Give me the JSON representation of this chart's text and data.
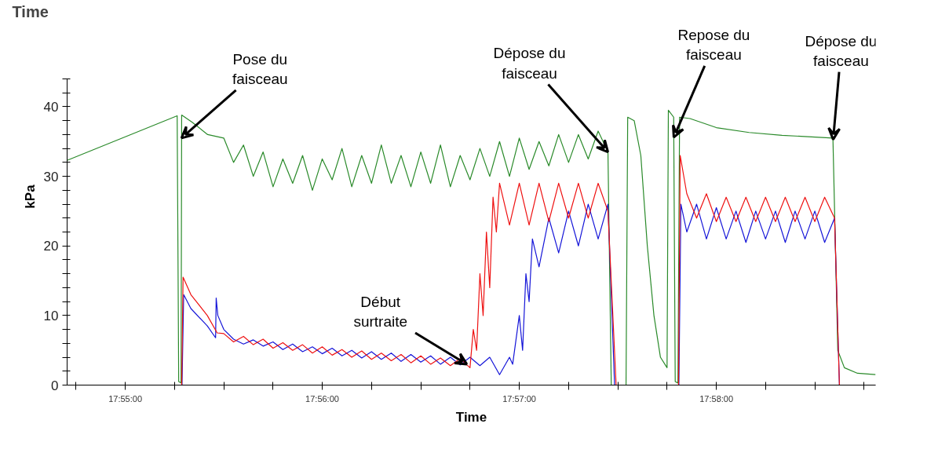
{
  "chart_data": {
    "type": "line",
    "title": "Time",
    "xlabel": "Time",
    "ylabel": "kPa",
    "xlim": [
      17.91175,
      17.98014
    ],
    "ylim": [
      0,
      44
    ],
    "xticks": [
      {
        "value": 17.9125,
        "label": null
      },
      {
        "value": 17.91667,
        "label": "17:55:00"
      },
      {
        "value": 17.92083,
        "label": null
      },
      {
        "value": 17.925,
        "label": null
      },
      {
        "value": 17.92917,
        "label": null
      },
      {
        "value": 17.93333,
        "label": "17:56:00"
      },
      {
        "value": 17.9375,
        "label": null
      },
      {
        "value": 17.94167,
        "label": null
      },
      {
        "value": 17.94583,
        "label": null
      },
      {
        "value": 17.95,
        "label": "17:57:00"
      },
      {
        "value": 17.95417,
        "label": null
      },
      {
        "value": 17.95833,
        "label": null
      },
      {
        "value": 17.9625,
        "label": null
      },
      {
        "value": 17.96667,
        "label": "17:58:00"
      },
      {
        "value": 17.97083,
        "label": null
      },
      {
        "value": 17.975,
        "label": null
      },
      {
        "value": 17.97917,
        "label": null
      }
    ],
    "yticks": [
      0,
      {
        "value": 2,
        "label": null
      },
      {
        "value": 4,
        "label": null
      },
      {
        "value": 6,
        "label": null
      },
      {
        "value": 8,
        "label": null
      },
      10,
      {
        "value": 12,
        "label": null
      },
      {
        "value": 14,
        "label": null
      },
      {
        "value": 16,
        "label": null
      },
      {
        "value": 18,
        "label": null
      },
      20,
      {
        "value": 22,
        "label": null
      },
      {
        "value": 24,
        "label": null
      },
      {
        "value": 26,
        "label": null
      },
      {
        "value": 28,
        "label": null
      },
      30,
      {
        "value": 32,
        "label": null
      },
      {
        "value": 34,
        "label": null
      },
      {
        "value": 36,
        "label": null
      },
      {
        "value": 38,
        "label": null
      },
      40,
      {
        "value": 42,
        "label": null
      },
      {
        "value": 44,
        "label": null
      }
    ],
    "grid": false,
    "series": [
      {
        "color": "#2a8a2a",
        "x": [
          17.91175,
          17.92106,
          17.92119,
          17.92139,
          17.92144,
          17.92231,
          17.92364,
          17.925,
          17.92583,
          17.92667,
          17.9275,
          17.92833,
          17.92917,
          17.93,
          17.93083,
          17.93167,
          17.9325,
          17.93333,
          17.93417,
          17.935,
          17.93583,
          17.93667,
          17.9375,
          17.93833,
          17.93917,
          17.94,
          17.94083,
          17.94167,
          17.9425,
          17.94333,
          17.94417,
          17.945,
          17.94583,
          17.94667,
          17.9475,
          17.94833,
          17.94917,
          17.95,
          17.95083,
          17.95167,
          17.9525,
          17.95333,
          17.95417,
          17.955,
          17.95583,
          17.95667,
          17.9575,
          17.95778,
          17.95903,
          17.95917,
          17.95972,
          17.96028,
          17.96083,
          17.96139,
          17.96194,
          17.9625,
          17.96261,
          17.96306,
          17.96319,
          17.96342,
          17.96356,
          17.96444,
          17.96667,
          17.96944,
          17.97222,
          17.97653,
          17.97694,
          17.9775,
          17.97861,
          17.98014
        ],
        "values": [
          32.3,
          38.7,
          0.5,
          0.3,
          38.8,
          37.8,
          36,
          35.5,
          32,
          34.5,
          30,
          33.5,
          28.5,
          32.5,
          29,
          33,
          28,
          32.5,
          29.5,
          34,
          28.5,
          33,
          29,
          34.5,
          29,
          33,
          28.5,
          33.5,
          29,
          34.5,
          28.5,
          33,
          29.5,
          34,
          30,
          35,
          30,
          35.5,
          31,
          35,
          31.5,
          36,
          32,
          36,
          32.5,
          36.5,
          33.5,
          0,
          0,
          38.5,
          38,
          33,
          20,
          10,
          4,
          2.5,
          39.5,
          38.5,
          0.5,
          0.3,
          38.5,
          38.3,
          37,
          36.3,
          35.9,
          35.5,
          5,
          2.5,
          1.7,
          1.5
        ]
      },
      {
        "color": "#1515d8",
        "x": [
          17.91175,
          17.92147,
          17.92161,
          17.92222,
          17.92361,
          17.92431,
          17.92436,
          17.9245,
          17.925,
          17.92583,
          17.92667,
          17.9275,
          17.92833,
          17.92917,
          17.93,
          17.93083,
          17.93167,
          17.9325,
          17.93333,
          17.93417,
          17.935,
          17.93583,
          17.93667,
          17.9375,
          17.93833,
          17.93917,
          17.94,
          17.94083,
          17.94167,
          17.9425,
          17.94333,
          17.94417,
          17.945,
          17.94583,
          17.94667,
          17.9475,
          17.94833,
          17.94917,
          17.94944,
          17.95,
          17.95028,
          17.95056,
          17.95083,
          17.95111,
          17.95167,
          17.9525,
          17.95333,
          17.95417,
          17.955,
          17.95583,
          17.95667,
          17.9575,
          17.95806,
          17.9635,
          17.96367,
          17.96417,
          17.965,
          17.96583,
          17.96667,
          17.9675,
          17.96833,
          17.96917,
          17.97,
          17.97083,
          17.97167,
          17.9725,
          17.97333,
          17.97417,
          17.975,
          17.97583,
          17.97667,
          17.97708,
          17.98014
        ],
        "values": [
          0,
          0,
          13,
          11,
          8.5,
          6.8,
          12.5,
          10,
          8,
          6.6,
          5.9,
          6.5,
          5.6,
          6.2,
          5.1,
          5.9,
          4.8,
          5.5,
          4.5,
          5.3,
          4.2,
          5,
          3.9,
          4.8,
          3.7,
          4.6,
          3.4,
          4.4,
          3.3,
          4.2,
          3,
          4,
          2.9,
          4,
          2.8,
          4,
          1.5,
          4,
          3,
          10,
          5,
          16,
          12,
          21,
          17,
          24,
          19,
          25,
          20,
          26,
          21,
          26,
          0,
          0,
          26,
          22,
          26,
          21,
          25.5,
          21,
          25,
          20.5,
          25,
          21,
          25,
          20.5,
          25,
          21,
          25,
          20.5,
          24,
          0,
          0
        ]
      },
      {
        "color": "#ee1111",
        "x": [
          17.91175,
          17.92144,
          17.92156,
          17.92222,
          17.92361,
          17.92444,
          17.925,
          17.92583,
          17.92667,
          17.9275,
          17.92833,
          17.92917,
          17.93,
          17.93083,
          17.93167,
          17.9325,
          17.93333,
          17.93417,
          17.935,
          17.93583,
          17.93667,
          17.9375,
          17.93833,
          17.93917,
          17.94,
          17.94083,
          17.94167,
          17.9425,
          17.94333,
          17.94417,
          17.945,
          17.94583,
          17.94611,
          17.94639,
          17.94667,
          17.94694,
          17.94722,
          17.9475,
          17.94778,
          17.94806,
          17.94833,
          17.94917,
          17.95,
          17.95083,
          17.95167,
          17.9525,
          17.95333,
          17.95417,
          17.955,
          17.95583,
          17.95667,
          17.9575,
          17.95819,
          17.96347,
          17.96361,
          17.96417,
          17.965,
          17.96583,
          17.96667,
          17.9675,
          17.96833,
          17.96917,
          17.97,
          17.97083,
          17.97167,
          17.9725,
          17.97333,
          17.97417,
          17.975,
          17.97583,
          17.97667,
          17.97708,
          17.98014
        ],
        "values": [
          0,
          0,
          15.5,
          13,
          10,
          7.5,
          7.4,
          6.2,
          7,
          5.8,
          6.6,
          5.3,
          6.1,
          5,
          5.8,
          4.6,
          5.5,
          4.3,
          5.1,
          4,
          4.9,
          3.7,
          4.6,
          3.5,
          4.4,
          3.2,
          4.2,
          3,
          3.9,
          2.8,
          3.8,
          2.5,
          8,
          5,
          16,
          10,
          22,
          14,
          27,
          22,
          29,
          23,
          29,
          23,
          29,
          23.5,
          29,
          24,
          29,
          24,
          29,
          25,
          0,
          0,
          33,
          27.5,
          24,
          27.5,
          23.5,
          27,
          23.5,
          27,
          23.5,
          27,
          23.5,
          27,
          23.5,
          27,
          23.5,
          27,
          24,
          0,
          0
        ]
      }
    ],
    "annotations": [
      {
        "text": "Pose du faisceau",
        "x": 17.92143,
        "y": 35.5
      },
      {
        "text": "Début surtraite",
        "x": 17.94556,
        "y": 3
      },
      {
        "text": "Dépose du faisceau",
        "x": 17.9575,
        "y": 33.5
      },
      {
        "text": "Repose du faisceau",
        "x": 17.96307,
        "y": 35.6
      },
      {
        "text": "Dépose du faisceau",
        "x": 17.97655,
        "y": 35.3
      }
    ]
  }
}
